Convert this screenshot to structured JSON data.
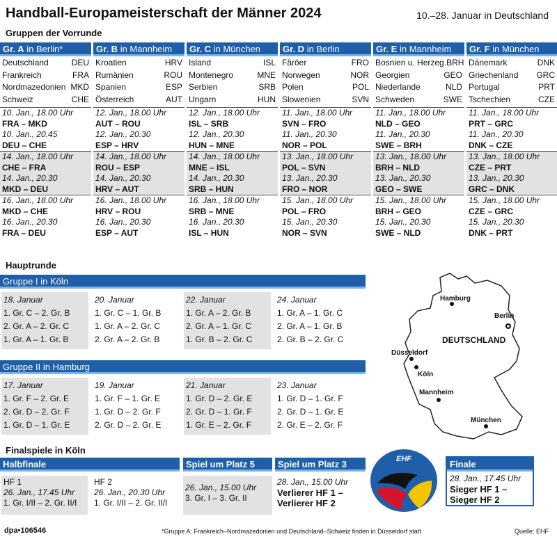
{
  "title": "Handball-Europameisterschaft der Männer 2024",
  "dates": "10.–28. Januar in Deutschland",
  "vorrunde_label": "Gruppen der Vorrunde",
  "groups": [
    {
      "name": "Gr. A",
      "city": "in Berlin*",
      "teams": [
        [
          "Deutschland",
          "DEU"
        ],
        [
          "Frankreich",
          "FRA"
        ],
        [
          "Nordmazedonien",
          "MKD"
        ],
        [
          "Schweiz",
          "CHE"
        ]
      ],
      "matches": [
        [
          "10. Jan., 18.00 Uhr",
          "FRA – MKD"
        ],
        [
          "10. Jan., 20.45",
          "DEU – CHE"
        ],
        [
          "14. Jan., 18.00 Uhr",
          "CHE – FRA"
        ],
        [
          "14. Jan., 20.30",
          "MKD – DEU"
        ],
        [
          "16. Jan., 18.00 Uhr",
          "MKD – CHE"
        ],
        [
          "16. Jan., 20.30",
          "FRA – DEU"
        ]
      ]
    },
    {
      "name": "Gr. B",
      "city": "in Mannheim",
      "teams": [
        [
          "Kroatien",
          "HRV"
        ],
        [
          "Rumänien",
          "ROU"
        ],
        [
          "Spanien",
          "ESP"
        ],
        [
          "Österreich",
          "AUT"
        ]
      ],
      "matches": [
        [
          "12. Jan., 18.00 Uhr",
          "AUT – ROU"
        ],
        [
          "12. Jan., 20.30",
          "ESP – HRV"
        ],
        [
          "14. Jan., 18.00 Uhr",
          "ROU – ESP"
        ],
        [
          "14. Jan., 20.30",
          "HRV – AUT"
        ],
        [
          "16. Jan., 18.00 Uhr",
          "HRV – ROU"
        ],
        [
          "16. Jan., 20.30",
          "ESP – AUT"
        ]
      ]
    },
    {
      "name": "Gr. C",
      "city": "in München",
      "teams": [
        [
          "Island",
          "ISL"
        ],
        [
          "Montenegro",
          "MNE"
        ],
        [
          "Serbien",
          "SRB"
        ],
        [
          "Ungarn",
          "HUN"
        ]
      ],
      "matches": [
        [
          "12. Jan., 18.00 Uhr",
          "ISL – SRB"
        ],
        [
          "12. Jan., 20.30",
          "HUN – MNE"
        ],
        [
          "14. Jan., 18.00 Uhr",
          "MNE – ISL"
        ],
        [
          "14. Jan., 20.30",
          "SRB – HUN"
        ],
        [
          "16. Jan., 18.00 Uhr",
          "SRB – MNE"
        ],
        [
          "16. Jan., 20.30",
          "ISL – HUN"
        ]
      ]
    },
    {
      "name": "Gr. D",
      "city": "in Berlin",
      "teams": [
        [
          "Färöer",
          "FRO"
        ],
        [
          "Norwegen",
          "NOR"
        ],
        [
          "Polen",
          "POL"
        ],
        [
          "Slowenien",
          "SVN"
        ]
      ],
      "matches": [
        [
          "11. Jan., 18.00 Uhr",
          "SVN – FRO"
        ],
        [
          "11. Jan., 20.30",
          "NOR – POL"
        ],
        [
          "13. Jan., 18.00 Uhr",
          "POL – SVN"
        ],
        [
          "13. Jan., 20.30",
          "FRO – NOR"
        ],
        [
          "15. Jan., 18.00 Uhr",
          "POL – FRO"
        ],
        [
          "15. Jan., 20.30",
          "NOR – SVN"
        ]
      ]
    },
    {
      "name": "Gr. E",
      "city": "in Mannheim",
      "teams": [
        [
          "Bosnien u. Herzeg.",
          "BRH"
        ],
        [
          "Georgien",
          "GEO"
        ],
        [
          "Niederlande",
          "NLD"
        ],
        [
          "Schweden",
          "SWE"
        ]
      ],
      "matches": [
        [
          "11. Jan., 18.00 Uhr",
          "NLD – GEO"
        ],
        [
          "11. Jan., 20.30",
          "SWE – BRH"
        ],
        [
          "13. Jan., 18.00 Uhr",
          "BRH – NLD"
        ],
        [
          "13. Jan., 20.30",
          "GEO – SWE"
        ],
        [
          "15. Jan., 18.00 Uhr",
          "BRH – GEO"
        ],
        [
          "15. Jan., 20.30",
          "SWE – NLD"
        ]
      ]
    },
    {
      "name": "Gr. F",
      "city": "in München",
      "teams": [
        [
          "Dänemark",
          "DNK"
        ],
        [
          "Griechenland",
          "GRC"
        ],
        [
          "Portugal",
          "PRT"
        ],
        [
          "Tschechien",
          "CZE"
        ]
      ],
      "matches": [
        [
          "11. Jan., 18.00 Uhr",
          "PRT – GRC"
        ],
        [
          "11. Jan., 20.30",
          "DNK – CZE"
        ],
        [
          "13. Jan., 18.00 Uhr",
          "CZE – PRT"
        ],
        [
          "13. Jan., 20.30",
          "GRC – DNK"
        ],
        [
          "15. Jan., 18.00 Uhr",
          "CZE – GRC"
        ],
        [
          "15. Jan., 20.30",
          "DNK – PRT"
        ]
      ]
    }
  ],
  "hauptrunde_label": "Hauptrunde",
  "hauptrunde": [
    {
      "name": "Gruppe I",
      "city": "in Köln",
      "days": [
        {
          "date": "18. Januar",
          "games": [
            "1. Gr. C – 2. Gr. B",
            "2. Gr. A – 2. Gr. C",
            "1. Gr. A – 1. Gr. B"
          ]
        },
        {
          "date": "20. Januar",
          "games": [
            "1. Gr. C – 1. Gr. B",
            "1. Gr. A – 2. Gr. C",
            "2. Gr. A – 2. Gr. B"
          ]
        },
        {
          "date": "22. Januar",
          "games": [
            "1. Gr. A – 2. Gr. B",
            "2. Gr. A – 1. Gr. C",
            "1. Gr. B – 2. Gr. C"
          ]
        },
        {
          "date": "24. Januar",
          "games": [
            "1. Gr. A – 1. Gr. C",
            "2. Gr. A – 1. Gr. B",
            "2. Gr. B – 2. Gr. C"
          ]
        }
      ]
    },
    {
      "name": "Gruppe II",
      "city": "in Hamburg",
      "days": [
        {
          "date": "17. Januar",
          "games": [
            "1. Gr. F – 2. Gr. E",
            "2. Gr. D – 2. Gr. F",
            "1. Gr. D – 1. Gr. E"
          ]
        },
        {
          "date": "19. Januar",
          "games": [
            "1. Gr. F – 1. Gr. E",
            "1. Gr. D – 2. Gr. F",
            "2. Gr. D – 2. Gr. E"
          ]
        },
        {
          "date": "21. Januar",
          "games": [
            "1. Gr. D – 2. Gr. E",
            "2. Gr. D – 1. Gr. F",
            "1. Gr. E – 2. Gr. F"
          ]
        },
        {
          "date": "23. Januar",
          "games": [
            "1. Gr. D – 1. Gr. F",
            "2. Gr. D – 1. Gr. E",
            "2. Gr. E – 2. Gr. F"
          ]
        }
      ]
    }
  ],
  "map": {
    "country": "DEUTSCHLAND",
    "cities": [
      "Hamburg",
      "Berlin",
      "Düsseldorf",
      "Köln",
      "Mannheim",
      "München"
    ]
  },
  "finals_label": "Finalspiele in Köln",
  "finals": {
    "halbfinale": {
      "title": "Halbfinale",
      "hf1": {
        "label": "HF 1",
        "date": "26. Jan., 17.45 Uhr",
        "game": "1. Gr. I/II – 2. Gr. II/I"
      },
      "hf2": {
        "label": "HF 2",
        "date": "26. Jan., 20.30 Uhr",
        "game": "1. Gr. I/II – 2. Gr. II/I"
      }
    },
    "platz5": {
      "title": "Spiel um Platz 5",
      "date": "26. Jan., 15.00 Uhr",
      "game": "3. Gr. I – 3. Gr. II"
    },
    "platz3": {
      "title": "Spiel um Platz 3",
      "date": "28. Jan., 15.00 Uhr",
      "line1": "Verlierer HF 1 –",
      "line2": "Verlierer HF 2"
    },
    "finale": {
      "title": "Finale",
      "date": "28. Jan., 17.45 Uhr",
      "line1": "Sieger HF 1 –",
      "line2": "Sieger HF 2"
    }
  },
  "logo_text": "EHF",
  "footer": {
    "id": "dpa•106546",
    "note": "*Gruppe A: Frankreich–Nordmazedonien und Deutschland–Schweiz finden in Düsseldorf statt",
    "source": "Quelle: EHF"
  },
  "colors": {
    "header_blue": "#1f5ea8",
    "accent_light_blue": "#7ab3e8",
    "row_gray": "#e2e2e2"
  }
}
